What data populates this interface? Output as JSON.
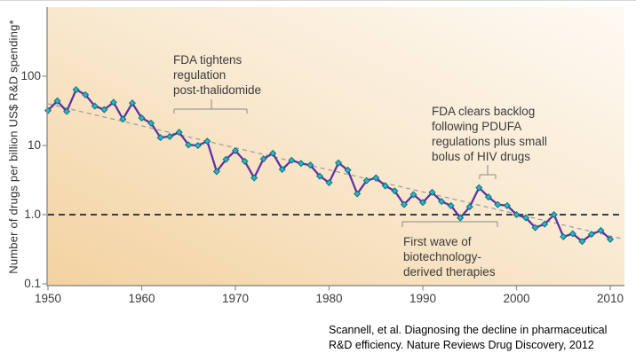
{
  "chart_data": {
    "type": "line",
    "title": "",
    "ylabel": "Number of drugs per billion US$ R&D spending*",
    "xlabel": "",
    "y_scale": "log10",
    "ylim": [
      0.1,
      1000
    ],
    "xlim": [
      1950,
      2011.5
    ],
    "grid": false,
    "legend": "none",
    "x_tick_values": [
      1950,
      1960,
      1970,
      1980,
      1990,
      2000,
      2010
    ],
    "x_tick_labels": [
      "1950",
      "1960",
      "1970",
      "1980",
      "1990",
      "2000",
      "2010"
    ],
    "y_tick_values": [
      100,
      10,
      1,
      0.1
    ],
    "y_tick_labels": [
      "100",
      "10",
      "1.0",
      "0.1"
    ],
    "series": [
      {
        "name": "drugs-per-billion-usd-rd-spending",
        "marker": "diamond",
        "years": [
          1950,
          1951,
          1952,
          1953,
          1954,
          1955,
          1956,
          1957,
          1958,
          1959,
          1960,
          1961,
          1962,
          1963,
          1964,
          1965,
          1966,
          1967,
          1968,
          1969,
          1970,
          1971,
          1972,
          1973,
          1974,
          1975,
          1976,
          1977,
          1978,
          1979,
          1980,
          1981,
          1982,
          1983,
          1984,
          1985,
          1986,
          1987,
          1988,
          1989,
          1990,
          1991,
          1992,
          1993,
          1994,
          1995,
          1996,
          1997,
          1998,
          1999,
          2000,
          2001,
          2002,
          2003,
          2004,
          2005,
          2006,
          2007,
          2008,
          2009,
          2010
        ],
        "values": [
          32,
          44,
          31,
          64,
          54,
          37,
          33,
          42,
          24,
          41,
          25,
          21,
          13,
          13.5,
          15.5,
          10.2,
          10,
          11.5,
          4.2,
          6.3,
          8.4,
          5.9,
          3.4,
          6.4,
          7.7,
          4.5,
          6.1,
          5.5,
          5.2,
          3.6,
          2.9,
          5.6,
          4.4,
          2.0,
          3.1,
          3.4,
          2.6,
          2.2,
          1.4,
          1.95,
          1.5,
          2.1,
          1.55,
          1.35,
          0.9,
          1.3,
          2.45,
          1.8,
          1.4,
          1.35,
          1.0,
          0.9,
          0.65,
          0.73,
          1.0,
          0.48,
          0.53,
          0.41,
          0.52,
          0.59,
          0.44
        ]
      }
    ],
    "trendline": {
      "style": "dashed",
      "x1": 1950,
      "v1": 40,
      "x2": 2011.2,
      "v2": 0.45
    },
    "reference_line": {
      "value": 1.0,
      "style": "dashed"
    },
    "annotations": [
      {
        "text": "FDA tightens\nregulation\npost-thalidomide",
        "bracket": {
          "x1": 196,
          "x2": 278,
          "y": 123,
          "stem_x": 238,
          "stem_y": 112,
          "tick": 5
        }
      },
      {
        "text": "FDA clears backlog\nfollowing PDUFA\nregulations plus small\nbolus of HIV drugs",
        "bracket": {
          "x1": 540,
          "x2": 558,
          "y": 197,
          "stem_x": 549,
          "stem_y": 186,
          "tick": 5
        }
      },
      {
        "text": "First wave of\nbiotechnology-\nderived therapies",
        "bracket": {
          "x1": 453,
          "x2": 560,
          "y": 250,
          "tick": 6
        }
      }
    ]
  },
  "citation": {
    "text": "Scannell, et al. Diagnosing the decline in pharmaceutical\nR&D efficiency. Nature Reviews Drug Discovery, 2012"
  },
  "colors": {
    "line": "#5d34a2",
    "marker_fill": "#2bb7c7",
    "marker_stroke": "#0f6f7e",
    "trend": "#9a9a9a",
    "reference": "#323f4e",
    "axis": "#8f8f8f",
    "bracket": "#8a8a8a",
    "text": "#3b3b3b",
    "bg_dark": "#f3d2a0",
    "bg_mid": "#f9ead2",
    "bg_light": "#fefaf3"
  }
}
